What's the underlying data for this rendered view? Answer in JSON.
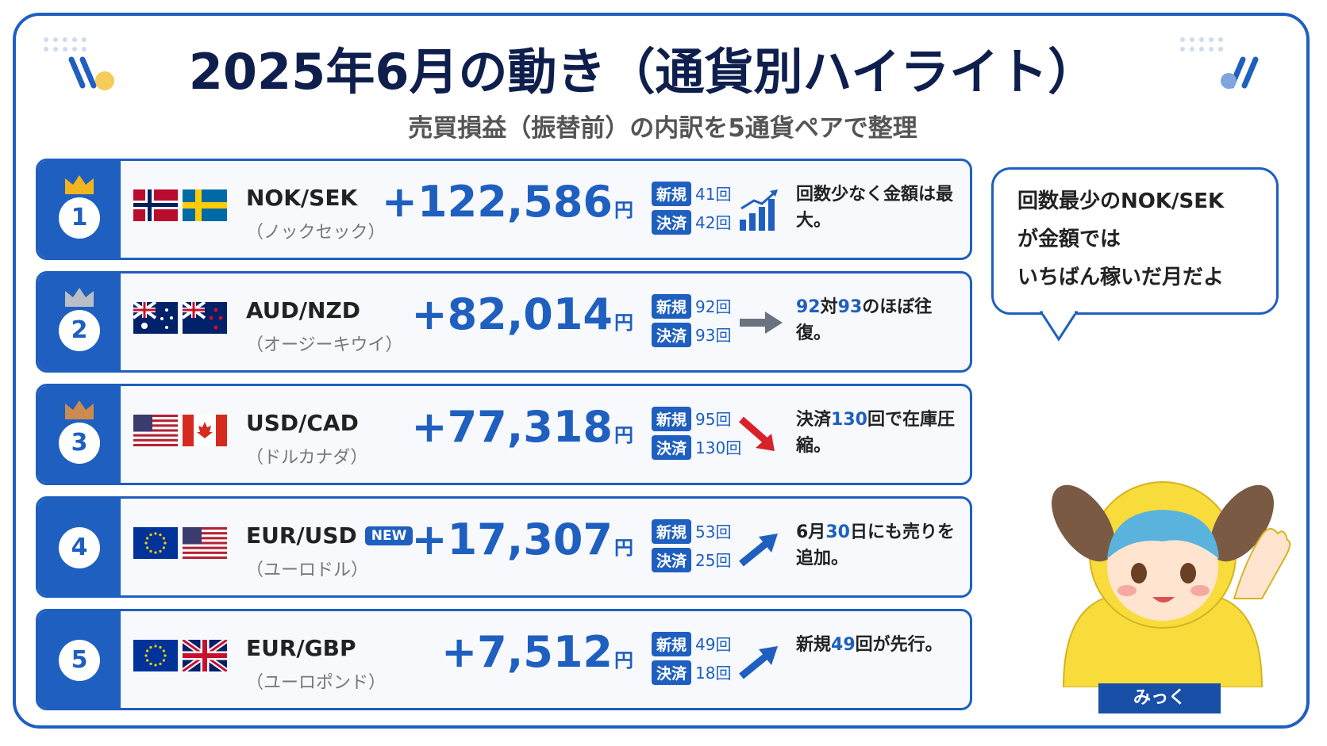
{
  "header": {
    "title": "2025年6月の動き（通貨別ハイライト）",
    "subtitle": "売買損益（振替前）の内訳を5通貨ペアで整理"
  },
  "rows": [
    {
      "rank": "1",
      "pair": "NOK/SEK",
      "reading": "（ノックセック）",
      "amount": "+122,586",
      "unit": "円",
      "new": {
        "label": "新規",
        "count": "41",
        "unit": "回"
      },
      "settle": {
        "label": "決済",
        "count": "42",
        "unit": "回"
      },
      "note": [
        {
          "text": "回数少なく金額は最大。"
        }
      ]
    },
    {
      "rank": "2",
      "pair": "AUD/NZD",
      "reading": "（オージーキウイ）",
      "amount": "+82,014",
      "unit": "円",
      "new": {
        "label": "新規",
        "count": "92",
        "unit": "回"
      },
      "settle": {
        "label": "決済",
        "count": "93",
        "unit": "回"
      },
      "note": [
        {
          "text": "92",
          "highlight": true
        },
        {
          "text": "対"
        },
        {
          "text": "93",
          "highlight": true
        },
        {
          "text": "のほぼ往復。"
        }
      ]
    },
    {
      "rank": "3",
      "pair": "USD/CAD",
      "reading": "（ドルカナダ）",
      "amount": "+77,318",
      "unit": "円",
      "new": {
        "label": "新規",
        "count": "95",
        "unit": "回"
      },
      "settle": {
        "label": "決済",
        "count": "130",
        "unit": "回"
      },
      "note": [
        {
          "text": "決済"
        },
        {
          "text": "130",
          "highlight": true
        },
        {
          "text": "回で在庫圧縮。"
        }
      ]
    },
    {
      "rank": "4",
      "pair": "EUR/USD",
      "badge": "NEW",
      "reading": "（ユーロドル）",
      "amount": "+17,307",
      "unit": "円",
      "new": {
        "label": "新規",
        "count": "53",
        "unit": "回"
      },
      "settle": {
        "label": "決済",
        "count": "25",
        "unit": "回"
      },
      "note": [
        {
          "text": "6月"
        },
        {
          "text": "30",
          "highlight": true
        },
        {
          "text": "日にも売りを追加。"
        }
      ]
    },
    {
      "rank": "5",
      "pair": "EUR/GBP",
      "reading": "（ユーロポンド）",
      "amount": "+7,512",
      "unit": "円",
      "new": {
        "label": "新規",
        "count": "49",
        "unit": "回"
      },
      "settle": {
        "label": "決済",
        "count": "18",
        "unit": "回"
      },
      "note": [
        {
          "text": "新規"
        },
        {
          "text": "49",
          "highlight": true
        },
        {
          "text": "回が先行。"
        }
      ]
    }
  ],
  "bubble": {
    "lines": [
      "回数最少のNOK/SEK",
      "が金額では",
      "いちばん稼いだ月だよ"
    ]
  },
  "character": {
    "name": "みっく"
  }
}
